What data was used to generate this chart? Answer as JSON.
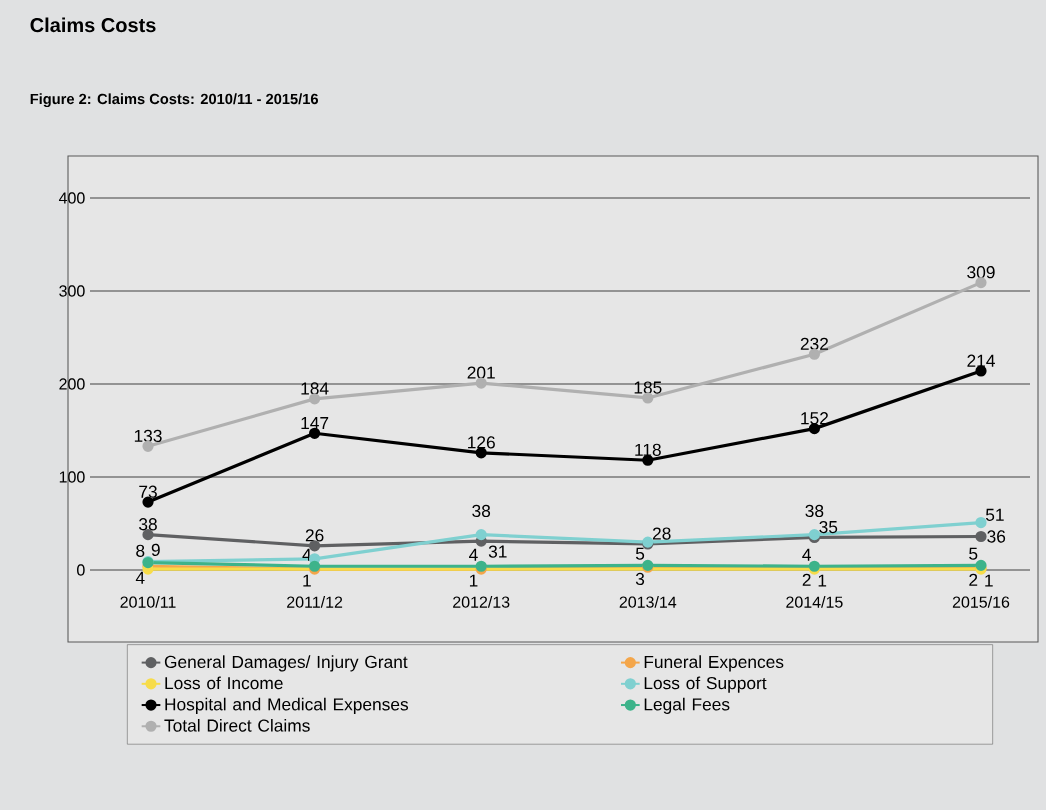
{
  "chart_data": {
    "type": "line",
    "title": "Claims Costs",
    "subtitle": "Figure 2: Claims Costs: 2010/11 - 2015/16",
    "categories": [
      "2010/11",
      "2011/12",
      "2012/13",
      "2013/14",
      "2014/15",
      "2015/16"
    ],
    "series": [
      {
        "name": "General Damages/ Injury Grant",
        "color": "#5f6062",
        "values": [
          38,
          26,
          31,
          28,
          35,
          36
        ],
        "value_labels": [
          "38",
          "26",
          "31",
          "28",
          "35",
          "36"
        ]
      },
      {
        "name": "Funeral Expences",
        "color": "#f4a64a",
        "values": [
          4,
          1,
          1,
          3,
          2,
          2
        ],
        "value_labels": [
          "4",
          "1",
          "1",
          "3",
          "2",
          "2"
        ]
      },
      {
        "name": "Loss of Income",
        "color": "#f7dc4a",
        "values": [
          1,
          null,
          null,
          null,
          1,
          1
        ],
        "value_labels": [
          null,
          null,
          null,
          null,
          "1",
          "1"
        ]
      },
      {
        "name": "Loss of Support",
        "color": "#7fd0d0",
        "values": [
          9,
          12,
          38,
          30,
          38,
          51
        ],
        "value_labels": [
          "9",
          null,
          "38",
          null,
          "38",
          "51"
        ]
      },
      {
        "name": "Hospital and Medical Expenses",
        "color": "#000000",
        "values": [
          73,
          147,
          126,
          118,
          152,
          214
        ],
        "value_labels": [
          "73",
          "147",
          "126",
          "118",
          "152",
          "214"
        ]
      },
      {
        "name": "Legal Fees",
        "color": "#3db38a",
        "values": [
          8,
          4,
          4,
          5,
          4,
          5
        ],
        "value_labels": [
          "8",
          "4",
          "4",
          "5",
          "4",
          "5"
        ]
      },
      {
        "name": "Total Direct Claims",
        "color": "#b0b0b0",
        "values": [
          133,
          184,
          201,
          185,
          232,
          309
        ],
        "value_labels": [
          "133",
          "184",
          "201",
          "185",
          "232",
          "309"
        ]
      }
    ],
    "ylim": [
      0,
      400
    ],
    "yticks": [
      0,
      100,
      200,
      300,
      400
    ],
    "grid": "y",
    "legend": "bottom",
    "marker": "circle",
    "line_style": "solid"
  }
}
